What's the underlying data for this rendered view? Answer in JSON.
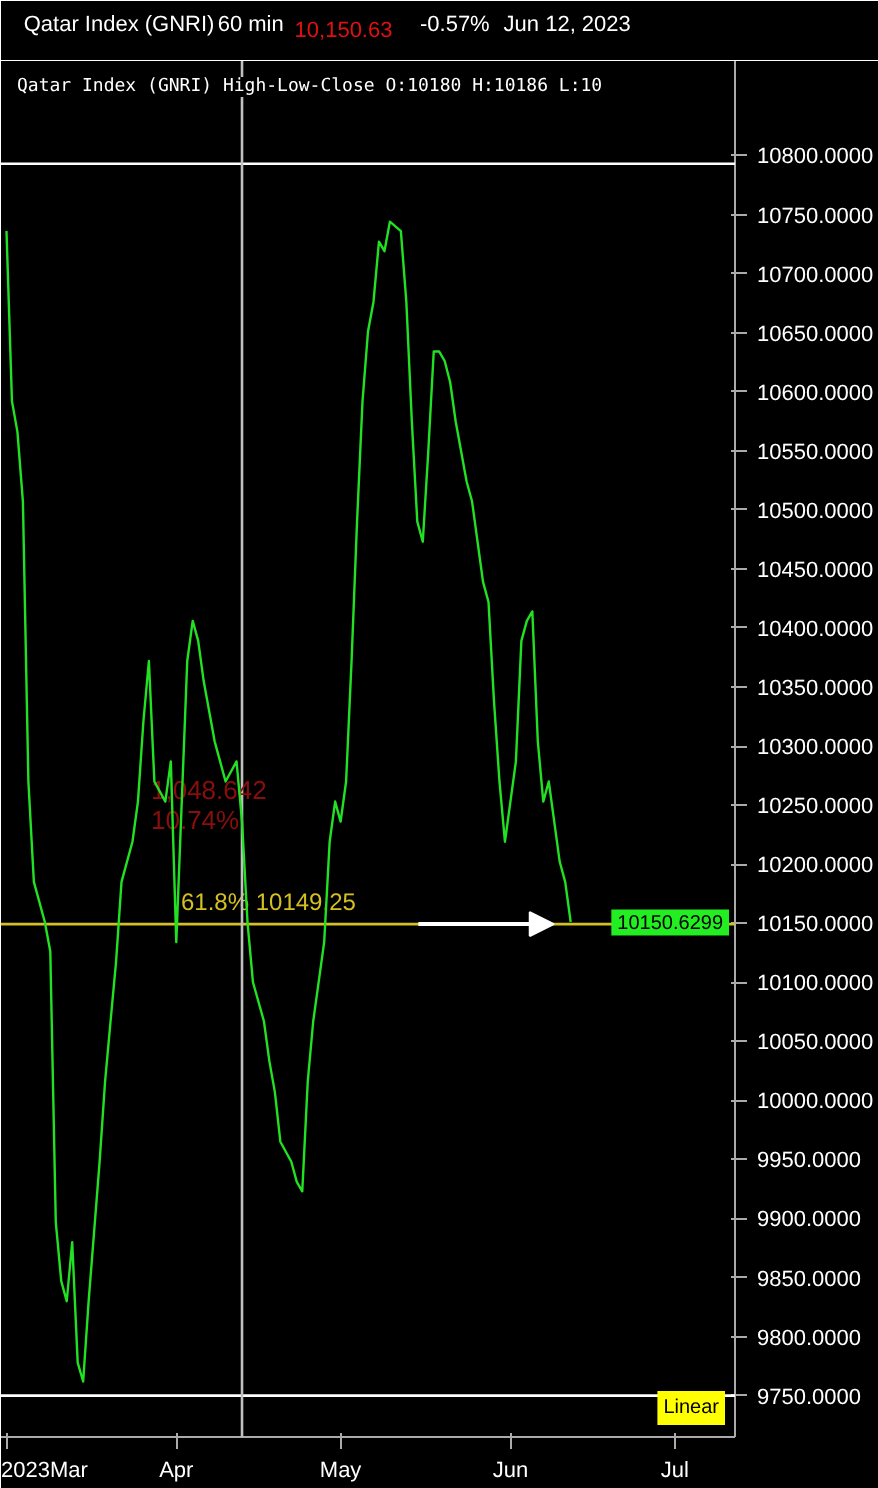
{
  "chart_data": {
    "type": "line",
    "title": "Qatar Index  (GNRI)",
    "subtitle": "Qatar Index (GNRI) High-Low-Close O:10180 H:10186 L:10",
    "annotations": [
      "60 min",
      "10,150.63",
      "-0.57%",
      "Jun 12, 2023",
      "1,048.642",
      "10.74%",
      "Linear",
      {
        "text": "10150.6299",
        "y": 10150.6299
      }
    ],
    "x": [
      "2023-03-01",
      "2023-03-02",
      "2023-03-03",
      "2023-03-04",
      "2023-03-05",
      "2023-03-06",
      "2023-03-08",
      "2023-03-09",
      "2023-03-10",
      "2023-03-11",
      "2023-03-12",
      "2023-03-13",
      "2023-03-14",
      "2023-03-15",
      "2023-03-16",
      "2023-03-18",
      "2023-03-19",
      "2023-03-20",
      "2023-03-21",
      "2023-03-22",
      "2023-03-24",
      "2023-03-25",
      "2023-03-26",
      "2023-03-27",
      "2023-03-28",
      "2023-03-30",
      "2023-03-31",
      "2023-04-01",
      "2023-04-02",
      "2023-04-03",
      "2023-04-04",
      "2023-04-05",
      "2023-04-06",
      "2023-04-08",
      "2023-04-09",
      "2023-04-10",
      "2023-04-12",
      "2023-04-13",
      "2023-04-14",
      "2023-04-15",
      "2023-04-17",
      "2023-04-18",
      "2023-04-19",
      "2023-04-20",
      "2023-04-22",
      "2023-04-23",
      "2023-04-24",
      "2023-04-25",
      "2023-04-26",
      "2023-04-28",
      "2023-04-29",
      "2023-04-30",
      "2023-05-01",
      "2023-05-02",
      "2023-05-03",
      "2023-05-04",
      "2023-05-05",
      "2023-05-06",
      "2023-05-07",
      "2023-05-08",
      "2023-05-09",
      "2023-05-10",
      "2023-05-12",
      "2023-05-13",
      "2023-05-14",
      "2023-05-15",
      "2023-05-16",
      "2023-05-17",
      "2023-05-18",
      "2023-05-19",
      "2023-05-20",
      "2023-05-21",
      "2023-05-22",
      "2023-05-24",
      "2023-05-25",
      "2023-05-26",
      "2023-05-27",
      "2023-05-28",
      "2023-05-29",
      "2023-05-30",
      "2023-05-31",
      "2023-06-01",
      "2023-06-02",
      "2023-06-03",
      "2023-06-04",
      "2023-06-05",
      "2023-06-06",
      "2023-06-07",
      "2023-06-08",
      "2023-06-09",
      "2023-06-10",
      "2023-06-11",
      "2023-06-12"
    ],
    "series": [
      {
        "color": "#22e022",
        "values": [
          10736,
          10592,
          10566,
          10507,
          10270,
          10185,
          10151,
          10126,
          9897,
          9847,
          9830,
          9880,
          9778,
          9762,
          9830,
          9948,
          10016,
          10067,
          10117,
          10185,
          10219,
          10253,
          10321,
          10372,
          10270,
          10253,
          10287,
          10134,
          10253,
          10372,
          10406,
          10389,
          10355,
          10304,
          10287,
          10270,
          10287,
          10236,
          10151,
          10100,
          10067,
          10033,
          10007,
          9965,
          9948,
          9931,
          9923,
          10016,
          10067,
          10134,
          10219,
          10253,
          10236,
          10270,
          10372,
          10490,
          10592,
          10651,
          10676,
          10727,
          10719,
          10744,
          10736,
          10676,
          10575,
          10490,
          10473,
          10549,
          10634,
          10634,
          10626,
          10608,
          10575,
          10524,
          10507,
          10473,
          10439,
          10422,
          10338,
          10270,
          10219,
          10253,
          10287,
          10389,
          10406,
          10414,
          10304,
          10253,
          10270,
          10236,
          10202,
          10185,
          10151
        ]
      }
    ],
    "xlim": [
      "2023-02-28",
      "2023-07-12"
    ],
    "xticks": [
      {
        "value": "2023-03-01",
        "label": "2023Mar"
      },
      {
        "value": "2023-04-01",
        "label": "Apr"
      },
      {
        "value": "2023-05-01",
        "label": "May"
      },
      {
        "value": "2023-06-01",
        "label": "Jun"
      },
      {
        "value": "2023-07-01",
        "label": "Jul"
      }
    ],
    "ylim": [
      9715,
      10880
    ],
    "yticks": [
      {
        "value": 9750,
        "label": "9750.0000"
      },
      {
        "value": 9800,
        "label": "9800.0000"
      },
      {
        "value": 9850,
        "label": "9850.0000"
      },
      {
        "value": 9900,
        "label": "9900.0000"
      },
      {
        "value": 9950,
        "label": "9950.0000"
      },
      {
        "value": 10000,
        "label": "10000.0000"
      },
      {
        "value": 10050,
        "label": "10050.0000"
      },
      {
        "value": 10100,
        "label": "10100.0000"
      },
      {
        "value": 10150,
        "label": "10150.0000"
      },
      {
        "value": 10200,
        "label": "10200.0000"
      },
      {
        "value": 10250,
        "label": "10250.0000"
      },
      {
        "value": 10300,
        "label": "10300.0000"
      },
      {
        "value": 10350,
        "label": "10350.0000"
      },
      {
        "value": 10400,
        "label": "10400.0000"
      },
      {
        "value": 10450,
        "label": "10450.0000"
      },
      {
        "value": 10500,
        "label": "10500.0000"
      },
      {
        "value": 10550,
        "label": "10550.0000"
      },
      {
        "value": 10600,
        "label": "10600.0000"
      },
      {
        "value": 10650,
        "label": "10650.0000"
      },
      {
        "value": 10700,
        "label": "10700.0000"
      },
      {
        "value": 10750,
        "label": "10750.0000"
      },
      {
        "value": 10800,
        "label": "10800.0000"
      }
    ],
    "ref_lines": [
      {
        "axis": "y",
        "value": 10149.25,
        "label": "61.8%  10149.25",
        "color": "#d4c020"
      },
      {
        "axis": "y",
        "value": 10793,
        "label": null,
        "color": "#ffffff"
      },
      {
        "axis": "y",
        "value": 9750,
        "label": null,
        "color": "#ffffff"
      },
      {
        "axis": "x",
        "value": "2023-04-13",
        "label": null,
        "color": "#c0c0c0"
      }
    ],
    "grid": false,
    "line_style": "solid",
    "marker": "none"
  }
}
